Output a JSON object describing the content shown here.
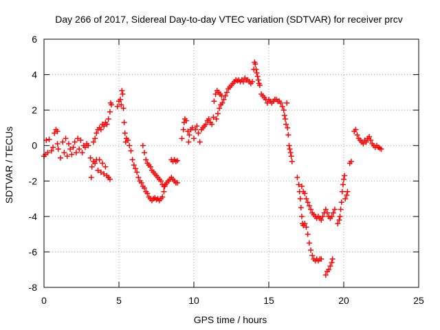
{
  "chart_data": {
    "type": "scatter",
    "title": "Day 266 of 2017, Sidereal Day-to-day VTEC variation (SDTVAR) for receiver prcv",
    "xlabel": "GPS time / hours",
    "ylabel": "SDTVAR / TECUs",
    "xlim": [
      0,
      25
    ],
    "ylim": [
      -8,
      6
    ],
    "xticks": [
      0,
      5,
      10,
      15,
      20,
      25
    ],
    "yticks": [
      -8,
      -6,
      -4,
      -2,
      0,
      2,
      4,
      6
    ],
    "xtick_labels": [
      "0",
      "5",
      "10",
      "15",
      "20",
      "25"
    ],
    "ytick_labels": [
      "-8",
      "-6",
      "-4",
      "-2",
      "0",
      "2",
      "4",
      "6"
    ],
    "grid": true,
    "marker": "+",
    "color": "#ff0000",
    "series": [
      {
        "name": "SDTVAR",
        "points": [
          [
            0.0,
            -0.6
          ],
          [
            0.1,
            -0.5
          ],
          [
            0.15,
            0.3
          ],
          [
            0.25,
            -0.4
          ],
          [
            0.35,
            0.35
          ],
          [
            0.5,
            -0.3
          ],
          [
            0.6,
            -0.1
          ],
          [
            0.7,
            0.7
          ],
          [
            0.8,
            0.9
          ],
          [
            0.9,
            0.8
          ],
          [
            0.9,
            0.1
          ],
          [
            0.95,
            -0.2
          ],
          [
            1.1,
            -0.7
          ],
          [
            1.25,
            0.2
          ],
          [
            1.35,
            -0.4
          ],
          [
            1.45,
            0.4
          ],
          [
            1.55,
            -0.6
          ],
          [
            1.65,
            0.1
          ],
          [
            1.75,
            -0.2
          ],
          [
            1.85,
            -0.5
          ],
          [
            1.95,
            -0.1
          ],
          [
            2.05,
            0.2
          ],
          [
            2.15,
            -0.4
          ],
          [
            2.25,
            0.4
          ],
          [
            2.35,
            -0.2
          ],
          [
            2.45,
            0.3
          ],
          [
            2.55,
            -0.4
          ],
          [
            2.65,
            0.0
          ],
          [
            2.75,
            -0.1
          ],
          [
            2.85,
            0.1
          ],
          [
            2.95,
            0.0
          ],
          [
            3.1,
            -0.7
          ],
          [
            3.15,
            -1.8
          ],
          [
            3.2,
            -1.2
          ],
          [
            3.3,
            -0.9
          ],
          [
            3.4,
            -1.0
          ],
          [
            3.5,
            -0.8
          ],
          [
            3.6,
            -1.4
          ],
          [
            3.7,
            -0.8
          ],
          [
            3.8,
            -1.5
          ],
          [
            3.9,
            -1.0
          ],
          [
            4.0,
            -1.6
          ],
          [
            4.1,
            -1.2
          ],
          [
            4.2,
            -1.7
          ],
          [
            4.3,
            -1.8
          ],
          [
            4.4,
            -1.9
          ],
          [
            3.3,
            0.2
          ],
          [
            3.4,
            0.4
          ],
          [
            3.5,
            0.7
          ],
          [
            3.6,
            0.9
          ],
          [
            3.7,
            1.0
          ],
          [
            3.8,
            0.9
          ],
          [
            3.9,
            1.2
          ],
          [
            4.0,
            1.1
          ],
          [
            4.1,
            1.3
          ],
          [
            4.2,
            1.2
          ],
          [
            4.3,
            1.5
          ],
          [
            4.4,
            1.9
          ],
          [
            4.45,
            2.4
          ],
          [
            4.5,
            2.3
          ],
          [
            4.9,
            2.2
          ],
          [
            5.0,
            2.5
          ],
          [
            5.1,
            2.6
          ],
          [
            5.15,
            2.3
          ],
          [
            5.2,
            3.1
          ],
          [
            5.25,
            2.9
          ],
          [
            5.3,
            2.1
          ],
          [
            5.35,
            1.3
          ],
          [
            5.4,
            0.7
          ],
          [
            5.45,
            0.2
          ],
          [
            5.5,
            0.4
          ],
          [
            5.6,
            0.3
          ],
          [
            5.7,
            0.0
          ],
          [
            5.8,
            -0.3
          ],
          [
            5.9,
            -0.8
          ],
          [
            6.0,
            -1.1
          ],
          [
            6.1,
            -1.3
          ],
          [
            6.2,
            -1.5
          ],
          [
            6.3,
            -1.8
          ],
          [
            6.4,
            -2.0
          ],
          [
            6.5,
            -2.1
          ],
          [
            6.6,
            -2.3
          ],
          [
            6.7,
            -2.4
          ],
          [
            6.8,
            -2.6
          ],
          [
            6.9,
            -2.7
          ],
          [
            7.0,
            -2.9
          ],
          [
            7.1,
            -3.0
          ],
          [
            7.2,
            -3.1
          ],
          [
            7.3,
            -3.0
          ],
          [
            7.4,
            -2.95
          ],
          [
            7.5,
            -3.05
          ],
          [
            7.6,
            -3.0
          ],
          [
            7.7,
            -3.1
          ],
          [
            7.8,
            -3.0
          ],
          [
            7.9,
            -2.9
          ],
          [
            8.0,
            -2.6
          ],
          [
            8.05,
            -2.3
          ],
          [
            6.6,
            0.0
          ],
          [
            6.7,
            -0.4
          ],
          [
            6.8,
            -0.8
          ],
          [
            6.9,
            -1.0
          ],
          [
            7.0,
            -1.1
          ],
          [
            7.1,
            -1.2
          ],
          [
            7.2,
            -1.4
          ],
          [
            7.3,
            -1.5
          ],
          [
            7.4,
            -1.6
          ],
          [
            7.5,
            -1.7
          ],
          [
            7.6,
            -1.8
          ],
          [
            7.7,
            -1.9
          ],
          [
            7.8,
            -2.0
          ],
          [
            7.9,
            -2.2
          ],
          [
            8.0,
            -2.3
          ],
          [
            8.1,
            -2.2
          ],
          [
            8.2,
            -2.1
          ],
          [
            8.3,
            -2.0
          ],
          [
            8.4,
            -1.9
          ],
          [
            8.5,
            -1.8
          ],
          [
            8.6,
            -1.9
          ],
          [
            8.7,
            -2.0
          ],
          [
            8.8,
            -2.1
          ],
          [
            8.9,
            -2.1
          ],
          [
            8.5,
            -0.8
          ],
          [
            8.6,
            -0.9
          ],
          [
            8.7,
            -0.8
          ],
          [
            8.8,
            -0.9
          ],
          [
            8.9,
            -0.85
          ],
          [
            9.2,
            0.4
          ],
          [
            9.3,
            0.9
          ],
          [
            9.35,
            1.3
          ],
          [
            9.4,
            1.5
          ],
          [
            9.5,
            1.4
          ],
          [
            9.6,
            0.8
          ],
          [
            9.65,
            0.2
          ],
          [
            9.7,
            0.6
          ],
          [
            9.8,
            0.9
          ],
          [
            9.9,
            1.0
          ],
          [
            10.0,
            0.4
          ],
          [
            10.1,
            0.9
          ],
          [
            10.2,
            1.1
          ],
          [
            10.3,
            0.7
          ],
          [
            10.4,
            0.2
          ],
          [
            10.5,
            0.9
          ],
          [
            10.6,
            1.0
          ],
          [
            10.7,
            1.1
          ],
          [
            10.8,
            1.2
          ],
          [
            10.9,
            1.4
          ],
          [
            11.0,
            1.5
          ],
          [
            11.1,
            1.3
          ],
          [
            11.2,
            1.2
          ],
          [
            11.3,
            1.6
          ],
          [
            11.35,
            2.5
          ],
          [
            11.45,
            2.9
          ],
          [
            11.55,
            3.1
          ],
          [
            11.65,
            3.0
          ],
          [
            11.75,
            2.9
          ],
          [
            11.85,
            2.8
          ],
          [
            11.5,
            1.5
          ],
          [
            11.6,
            1.8
          ],
          [
            11.7,
            2.1
          ],
          [
            11.8,
            2.3
          ],
          [
            11.9,
            2.4
          ],
          [
            12.0,
            2.6
          ],
          [
            12.1,
            2.8
          ],
          [
            12.2,
            3.0
          ],
          [
            12.3,
            3.2
          ],
          [
            12.4,
            3.3
          ],
          [
            12.5,
            3.4
          ],
          [
            12.6,
            3.5
          ],
          [
            12.7,
            3.6
          ],
          [
            12.8,
            3.7
          ],
          [
            12.9,
            3.65
          ],
          [
            13.0,
            3.7
          ],
          [
            13.1,
            3.6
          ],
          [
            13.2,
            3.7
          ],
          [
            13.3,
            3.6
          ],
          [
            13.4,
            3.8
          ],
          [
            13.5,
            3.7
          ],
          [
            13.6,
            3.7
          ],
          [
            13.7,
            3.6
          ],
          [
            13.8,
            3.5
          ],
          [
            13.9,
            3.6
          ],
          [
            14.0,
            4.3
          ],
          [
            14.05,
            4.7
          ],
          [
            14.1,
            4.6
          ],
          [
            14.15,
            4.3
          ],
          [
            14.2,
            4.1
          ],
          [
            14.25,
            3.9
          ],
          [
            14.3,
            3.7
          ],
          [
            14.35,
            3.5
          ],
          [
            14.4,
            3.4
          ],
          [
            14.5,
            2.9
          ],
          [
            14.6,
            2.8
          ],
          [
            14.7,
            2.7
          ],
          [
            14.8,
            2.6
          ],
          [
            14.9,
            2.4
          ],
          [
            15.0,
            2.6
          ],
          [
            15.1,
            2.5
          ],
          [
            15.2,
            2.4
          ],
          [
            15.3,
            2.5
          ],
          [
            15.4,
            2.6
          ],
          [
            15.5,
            2.6
          ],
          [
            15.6,
            2.5
          ],
          [
            15.7,
            2.5
          ],
          [
            15.8,
            2.4
          ],
          [
            15.9,
            2.2
          ],
          [
            16.0,
            2.0
          ],
          [
            16.05,
            1.7
          ],
          [
            16.1,
            1.5
          ],
          [
            16.15,
            1.2
          ],
          [
            16.2,
            2.4
          ],
          [
            16.25,
            1.0
          ],
          [
            16.3,
            0.6
          ],
          [
            16.35,
            0.0
          ],
          [
            16.4,
            -0.2
          ],
          [
            16.45,
            -0.4
          ],
          [
            16.5,
            -0.6
          ],
          [
            16.55,
            -0.9
          ],
          [
            16.9,
            -1.8
          ],
          [
            17.0,
            -2.2
          ],
          [
            17.05,
            -2.6
          ],
          [
            17.1,
            -3.0
          ],
          [
            17.15,
            -3.5
          ],
          [
            17.2,
            -4.0
          ],
          [
            17.25,
            -4.4
          ],
          [
            17.3,
            -4.5
          ],
          [
            17.4,
            -4.4
          ],
          [
            17.5,
            -4.6
          ],
          [
            17.6,
            -5.0
          ],
          [
            17.7,
            -5.5
          ],
          [
            17.8,
            -5.9
          ],
          [
            17.9,
            -6.2
          ],
          [
            18.0,
            -6.4
          ],
          [
            18.1,
            -6.5
          ],
          [
            18.2,
            -6.4
          ],
          [
            18.3,
            -6.5
          ],
          [
            18.4,
            -6.4
          ],
          [
            18.5,
            -6.4
          ],
          [
            17.2,
            -2.3
          ],
          [
            17.3,
            -2.6
          ],
          [
            17.4,
            -2.7
          ],
          [
            17.5,
            -3.0
          ],
          [
            17.6,
            -3.2
          ],
          [
            17.7,
            -3.4
          ],
          [
            17.8,
            -3.6
          ],
          [
            17.9,
            -3.8
          ],
          [
            18.0,
            -3.9
          ],
          [
            18.1,
            -4.0
          ],
          [
            18.2,
            -4.1
          ],
          [
            18.3,
            -4.0
          ],
          [
            18.4,
            -4.1
          ],
          [
            18.5,
            -4.2
          ],
          [
            18.6,
            -4.0
          ],
          [
            18.7,
            -3.8
          ],
          [
            18.8,
            -3.6
          ],
          [
            18.9,
            -3.8
          ],
          [
            19.0,
            -4.0
          ],
          [
            19.1,
            -4.1
          ],
          [
            19.2,
            -4.0
          ],
          [
            19.3,
            -3.8
          ],
          [
            19.4,
            -3.6
          ],
          [
            18.8,
            -7.3
          ],
          [
            18.9,
            -7.1
          ],
          [
            19.0,
            -7.0
          ],
          [
            19.1,
            -6.8
          ],
          [
            19.2,
            -6.6
          ],
          [
            19.25,
            -6.4
          ],
          [
            19.6,
            -4.4
          ],
          [
            19.7,
            -4.2
          ],
          [
            19.75,
            -4.0
          ],
          [
            19.8,
            -3.6
          ],
          [
            19.85,
            -3.2
          ],
          [
            19.9,
            -2.6
          ],
          [
            19.95,
            -2.2
          ],
          [
            20.0,
            -1.9
          ],
          [
            20.05,
            -1.7
          ],
          [
            20.1,
            -3.0
          ],
          [
            20.2,
            -2.8
          ],
          [
            20.25,
            -2.6
          ],
          [
            20.4,
            -1.0
          ],
          [
            20.5,
            -0.9
          ],
          [
            20.7,
            0.8
          ],
          [
            20.8,
            0.9
          ],
          [
            20.9,
            0.6
          ],
          [
            21.0,
            0.4
          ],
          [
            21.1,
            0.3
          ],
          [
            21.2,
            0.2
          ],
          [
            21.3,
            0.1
          ],
          [
            21.4,
            0.3
          ],
          [
            21.5,
            0.2
          ],
          [
            21.6,
            0.4
          ],
          [
            21.7,
            0.5
          ],
          [
            21.8,
            0.3
          ],
          [
            21.9,
            0.1
          ],
          [
            22.0,
            0.0
          ],
          [
            22.1,
            -0.1
          ],
          [
            22.2,
            0.0
          ],
          [
            22.3,
            -0.1
          ],
          [
            22.4,
            -0.15
          ],
          [
            22.5,
            -0.2
          ]
        ]
      }
    ]
  }
}
